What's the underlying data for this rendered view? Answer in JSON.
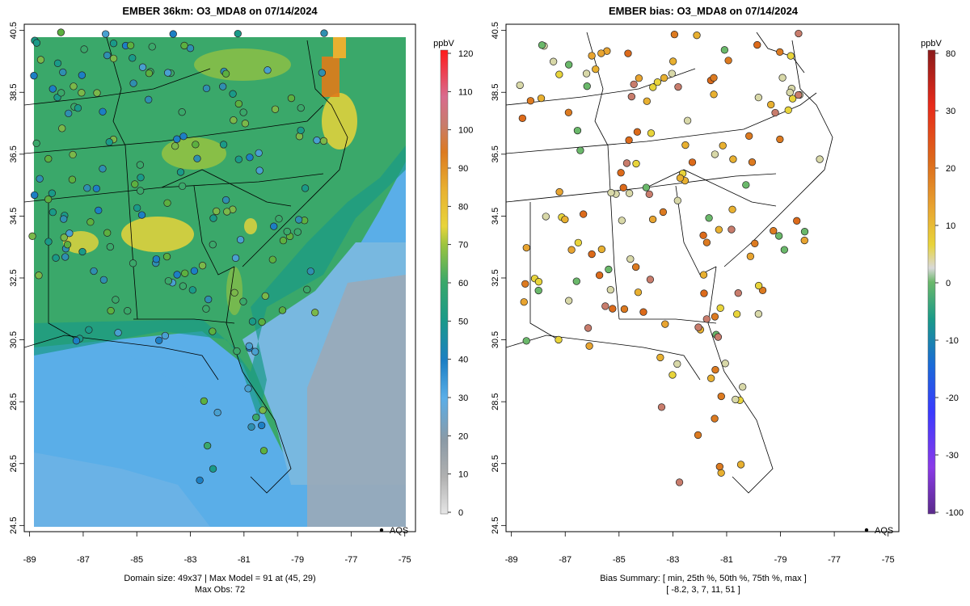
{
  "left": {
    "title": "EMBER 36km: O3_MDA8 on 07/14/2024",
    "caption_line1": "Domain size: 49x37 | Max Model = 91 at (45, 29)",
    "caption_line2": "Max Obs: 72",
    "legend_label": "AQS",
    "colorbar_unit": "ppbV",
    "colorbar_ticks": [
      "120",
      "110",
      "100",
      "90",
      "80",
      "70",
      "60",
      "50",
      "40",
      "30",
      "20",
      "10",
      "0"
    ],
    "colorbar_values": [
      120,
      110,
      100,
      90,
      80,
      70,
      60,
      50,
      40,
      30,
      20,
      10,
      0
    ]
  },
  "right": {
    "title": "EMBER bias: O3_MDA8 on 07/14/2024",
    "caption_line1": "Bias Summary: [ min, 25th %, 50th %, 75th %, max ]",
    "caption_line2": "[ -8.2,   3,   7,   11,   51 ]",
    "legend_label": "AQS",
    "colorbar_unit": "ppbV",
    "colorbar_ticks": [
      "80",
      "30",
      "20",
      "10",
      "0",
      "-10",
      "-20",
      "-30",
      "-100"
    ],
    "colorbar_values": [
      80,
      30,
      20,
      10,
      0,
      -10,
      -20,
      -30,
      -100
    ]
  },
  "axes": {
    "x_ticks": [
      "-89",
      "-87",
      "-85",
      "-83",
      "-81",
      "-79",
      "-77",
      "-75"
    ],
    "x_values": [
      -89,
      -87,
      -85,
      -83,
      -81,
      -79,
      -77,
      -75
    ],
    "y_ticks": [
      "40.5",
      "38.5",
      "36.5",
      "34.5",
      "32.5",
      "30.5",
      "28.5",
      "26.5",
      "24.5"
    ],
    "y_values": [
      40.5,
      38.5,
      36.5,
      34.5,
      32.5,
      30.5,
      28.5,
      26.5,
      24.5
    ],
    "lon_range": [
      -89.2,
      -74.6
    ],
    "lat_range": [
      24.3,
      40.7
    ]
  },
  "colors": {
    "ocean_blue": "#5aaee8",
    "land_green": "#3aa86a",
    "high_yellow": "#e8d43a",
    "peak_orange": "#e07b1a",
    "gray_ocean": "#9aaab8"
  }
}
